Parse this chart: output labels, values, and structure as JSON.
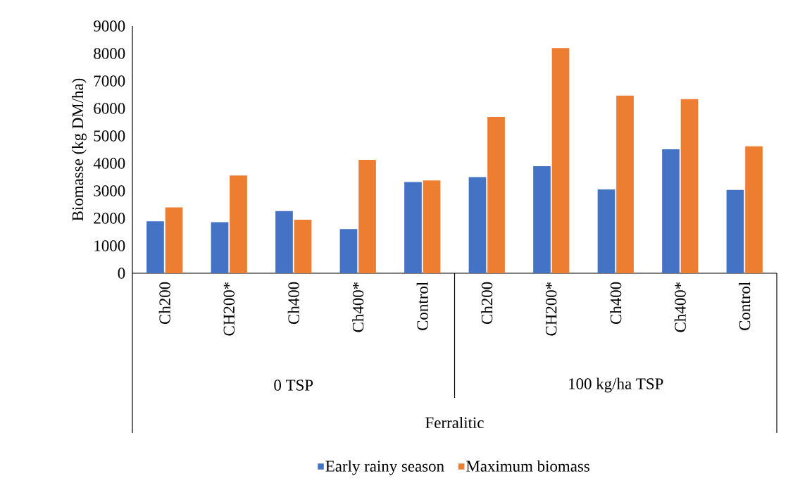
{
  "chart_data": {
    "type": "bar",
    "ylabel": "Biomasse (kg DM/ha)",
    "categories": [
      "Ch200",
      "CH200*",
      "Ch400",
      "Ch400*",
      "Control",
      "Ch200",
      "CH200*",
      "Ch400",
      "Ch400*",
      "Control"
    ],
    "series": [
      {
        "name": "Early rainy season",
        "color": "#4472c4",
        "values": [
          1890,
          1860,
          2260,
          1610,
          3320,
          3500,
          3900,
          3050,
          4510,
          3030
        ]
      },
      {
        "name": "Maximum biomass",
        "color": "#ed7d31",
        "values": [
          2400,
          3560,
          1950,
          4130,
          3380,
          5690,
          8200,
          6470,
          6340,
          4620
        ]
      }
    ],
    "annotations": [
      "0 TSP",
      "100 kg/ha TSP",
      "Ferralitic"
    ],
    "ylim": [
      0,
      9000
    ],
    "yticks": [
      0,
      1000,
      2000,
      3000,
      4000,
      5000,
      6000,
      7000,
      8000,
      9000
    ],
    "grid": false,
    "legend": "bottom"
  }
}
